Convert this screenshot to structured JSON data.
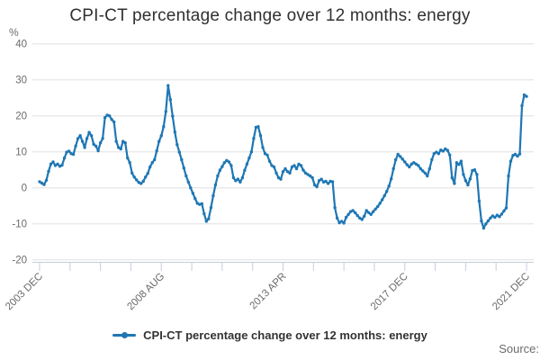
{
  "chart": {
    "title": "CPI-CT percentage change over 12 months: energy",
    "y_unit_label": "%",
    "legend_label": "CPI-CT percentage change over 12 months: energy",
    "source_label": "Source:"
  },
  "chart_data": {
    "type": "line",
    "title": "CPI-CT percentage change over 12 months: energy",
    "xlabel": "",
    "ylabel": "%",
    "ylim": [
      -20,
      40
    ],
    "yticks": [
      40,
      30,
      20,
      10,
      0,
      -10,
      -20
    ],
    "grid": true,
    "legend_position": "bottom",
    "x_start": "2003 DEC",
    "x_end": "2021 DEC",
    "frequency": "monthly",
    "xtick_labels": [
      "2003 DEC",
      "2008 AUG",
      "2013 APR",
      "2017 DEC",
      "2021 DEC"
    ],
    "minor_ticks_between_labels": 3,
    "colors": {
      "line": "#1f77b4",
      "grid": "#e0e0e0",
      "axis": "#c3cfdd",
      "tick_text": "#6b6b6b",
      "title_text": "#303030"
    },
    "series": [
      {
        "name": "CPI-CT percentage change over 12 months: energy",
        "color": "#1f77b4",
        "values": [
          1.7,
          1.3,
          0.9,
          2.1,
          4.6,
          6.6,
          7.2,
          6.2,
          6.6,
          6.0,
          6.3,
          8.3,
          9.9,
          10.2,
          9.5,
          9.3,
          11.6,
          13.7,
          14.5,
          12.9,
          11.2,
          13.7,
          15.4,
          14.5,
          12.1,
          11.6,
          10.3,
          12.5,
          13.7,
          19.5,
          20.2,
          20.0,
          19.0,
          18.3,
          12.9,
          11.2,
          10.8,
          12.9,
          12.5,
          8.3,
          7.0,
          4.1,
          3.0,
          2.2,
          1.5,
          1.2,
          1.8,
          3.0,
          4.0,
          5.8,
          7.0,
          7.8,
          10.3,
          12.9,
          14.5,
          17.0,
          21.2,
          28.4,
          24.5,
          19.9,
          15.5,
          12.0,
          9.9,
          7.8,
          5.5,
          3.3,
          1.6,
          0.0,
          -1.5,
          -3.0,
          -4.3,
          -4.6,
          -4.4,
          -7.2,
          -9.3,
          -8.6,
          -5.5,
          -2.2,
          0.8,
          3.3,
          4.9,
          5.9,
          7.0,
          7.6,
          7.2,
          6.2,
          2.8,
          2.0,
          2.4,
          1.6,
          2.8,
          4.9,
          6.6,
          8.3,
          10.0,
          13.7,
          16.8,
          17.0,
          14.5,
          11.2,
          9.5,
          9.1,
          7.4,
          6.2,
          5.8,
          4.1,
          2.8,
          2.4,
          4.5,
          5.3,
          4.5,
          4.1,
          5.8,
          6.2,
          5.3,
          6.6,
          6.2,
          4.9,
          4.1,
          3.7,
          3.3,
          2.8,
          0.8,
          0.3,
          2.0,
          2.4,
          1.6,
          1.8,
          1.2,
          1.8,
          1.7,
          -5.5,
          -8.4,
          -9.7,
          -9.3,
          -9.8,
          -8.2,
          -7.4,
          -6.6,
          -6.3,
          -6.9,
          -7.7,
          -8.4,
          -8.8,
          -7.9,
          -6.3,
          -6.9,
          -7.4,
          -6.6,
          -5.9,
          -5.2,
          -4.3,
          -3.3,
          -2.2,
          -1.0,
          0.5,
          2.5,
          5.3,
          7.8,
          9.3,
          8.7,
          8.0,
          7.2,
          6.4,
          5.8,
          6.6,
          7.0,
          6.6,
          6.2,
          5.3,
          4.7,
          4.1,
          3.3,
          5.3,
          7.8,
          9.5,
          9.9,
          9.5,
          10.5,
          10.2,
          10.8,
          10.4,
          9.1,
          2.8,
          1.2,
          7.0,
          6.5,
          7.4,
          3.7,
          2.0,
          0.8,
          2.5,
          4.8,
          5.0,
          3.7,
          -3.7,
          -9.2,
          -11.2,
          -10.0,
          -9.2,
          -8.4,
          -7.8,
          -8.2,
          -7.6,
          -8.0,
          -7.3,
          -6.4,
          -5.6,
          3.3,
          7.4,
          9.0,
          9.3,
          8.8,
          9.4,
          22.8,
          25.8,
          25.4
        ]
      }
    ]
  }
}
